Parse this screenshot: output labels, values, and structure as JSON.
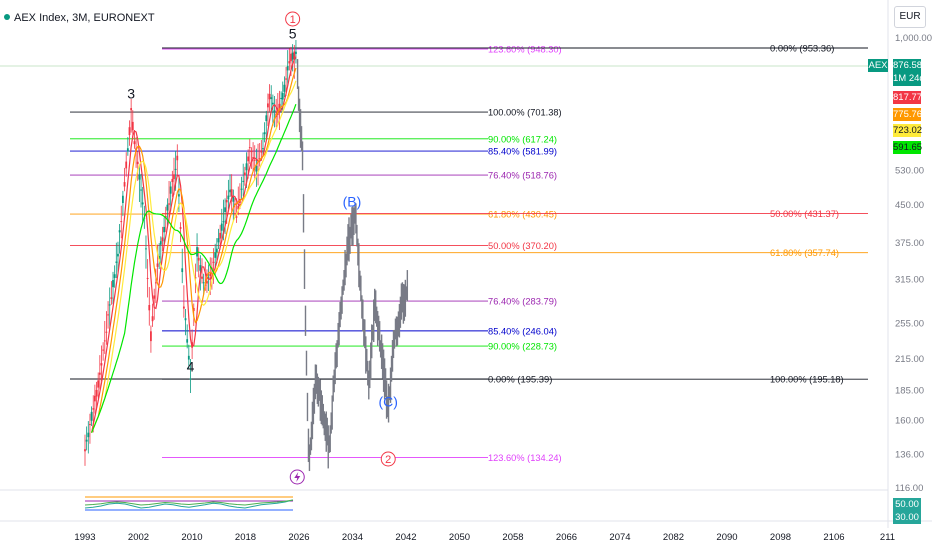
{
  "header": {
    "title": "AEX Index, 3M, EURONEXT",
    "currency": "EUR"
  },
  "price_tags": {
    "aex_label": "AEX",
    "last_price": "876.58",
    "countdown": "1M 24d",
    "tags": [
      {
        "value": "817.77",
        "bg": "#f23645",
        "fg": "#ffffff"
      },
      {
        "value": "775.76",
        "bg": "#ff9800",
        "fg": "#ffffff"
      },
      {
        "value": "723.02",
        "bg": "#ffeb3b",
        "fg": "#131722"
      },
      {
        "value": "591.65",
        "bg": "#00e600",
        "fg": "#131722"
      }
    ],
    "osc_tags": [
      {
        "value": "50.00",
        "bg": "#26a69a",
        "fg": "#ffffff"
      },
      {
        "value": "30.00",
        "bg": "#26a69a",
        "fg": "#ffffff"
      }
    ]
  },
  "chart_data": {
    "type": "line",
    "title": "AEX Index, 3M, EURONEXT",
    "price_scale": "log",
    "x_ticks": [
      "1993",
      "2002",
      "2010",
      "2018",
      "2026",
      "2034",
      "2042",
      "2050",
      "2058",
      "2066",
      "2074",
      "2082",
      "2090",
      "2098",
      "2106",
      "211"
    ],
    "y_ticks": [
      "1,000.00",
      "530.00",
      "450.00",
      "375.00",
      "315.00",
      "255.00",
      "215.00",
      "185.00",
      "160.00",
      "136.00",
      "116.00"
    ],
    "series": [
      {
        "values_approx": [
          [
            1993,
            140
          ],
          [
            1995,
            190
          ],
          [
            1998,
            360
          ],
          [
            2000,
            700
          ],
          [
            2002,
            420
          ],
          [
            2003,
            240
          ],
          [
            2004,
            340
          ],
          [
            2006,
            480
          ],
          [
            2007,
            560
          ],
          [
            2008,
            280
          ],
          [
            2009,
            200
          ],
          [
            2010,
            360
          ],
          [
            2011,
            310
          ],
          [
            2012,
            320
          ],
          [
            2014,
            420
          ],
          [
            2015,
            490
          ],
          [
            2016,
            430
          ],
          [
            2018,
            580
          ],
          [
            2019,
            540
          ],
          [
            2020,
            600
          ],
          [
            2021,
            760
          ],
          [
            2022,
            680
          ],
          [
            2023,
            760
          ],
          [
            2024,
            900
          ],
          [
            2025,
            930
          ],
          [
            2026,
            560
          ],
          [
            2026.5,
            230
          ],
          [
            2027,
            130
          ],
          [
            2028,
            200
          ],
          [
            2029,
            170
          ],
          [
            2030,
            140
          ],
          [
            2031,
            210
          ],
          [
            2032,
            290
          ],
          [
            2033,
            380
          ],
          [
            2034,
            430
          ],
          [
            2035,
            280
          ],
          [
            2036,
            190
          ],
          [
            2037,
            280
          ],
          [
            2038,
            220
          ],
          [
            2039,
            170
          ],
          [
            2040,
            240
          ],
          [
            2041,
            280
          ],
          [
            2042,
            300
          ]
        ]
      }
    ],
    "fib_levels": [
      {
        "label": "123.60% (948.30)",
        "y": 948.3,
        "x1": 2003,
        "color": "#e040fb"
      },
      {
        "label": "0.00% (953.36)",
        "y": 953.36,
        "x2": 2058,
        "color": "#131722"
      },
      {
        "label": "100.00% (701.38)",
        "y": 701.38,
        "x1": 1993,
        "color": "#131722"
      },
      {
        "label": "90.00% (617.24)",
        "y": 617.24,
        "x1": 1993,
        "color": "#00e600"
      },
      {
        "label": "85.40% (581.99)",
        "y": 581.99,
        "x1": 1993,
        "color": "#0000cc"
      },
      {
        "label": "76.40% (518.76)",
        "y": 518.76,
        "x1": 1993,
        "color": "#9c27b0"
      },
      {
        "label": "61.80% (430.45)",
        "y": 430.45,
        "x1": 1993,
        "color": "#ff9800"
      },
      {
        "label": "50.00% (431.37)",
        "y": 431.37,
        "x2": 2058,
        "color": "#f23645"
      },
      {
        "label": "50.00% (370.20)",
        "y": 370.2,
        "x1": 1993,
        "color": "#f23645"
      },
      {
        "label": "61.80% (357.74)",
        "y": 357.74,
        "x2": 2058,
        "color": "#ff9800"
      },
      {
        "label": "76.40% (283.79)",
        "y": 283.79,
        "x1": 2003,
        "color": "#9c27b0"
      },
      {
        "label": "85.40% (246.04)",
        "y": 246.04,
        "x1": 2003,
        "color": "#0000cc"
      },
      {
        "label": "90.00% (228.73)",
        "y": 228.73,
        "x1": 2003,
        "color": "#00e600"
      },
      {
        "label": "0.00% (195.39)",
        "y": 195.39,
        "x1": 1993,
        "color": "#131722"
      },
      {
        "label": "100.00% (195.18)",
        "y": 195.18,
        "x2": 2058,
        "color": "#131722"
      },
      {
        "label": "123.60% (134.24)",
        "y": 134.24,
        "x1": 2003,
        "color": "#e040fb"
      }
    ],
    "wave_labels": [
      {
        "text": "3",
        "x": 2000,
        "y": 720,
        "color": "#131722"
      },
      {
        "text": "4",
        "x": 2009,
        "y": 195,
        "color": "#131722"
      },
      {
        "text": "5",
        "x": 2024.5,
        "y": 960,
        "color": "#131722"
      },
      {
        "text": "(B)",
        "x": 2033.5,
        "y": 430,
        "color": "#2962ff"
      },
      {
        "text": "(C)",
        "x": 2039,
        "y": 165,
        "color": "#2962ff"
      }
    ],
    "circle_labels": [
      {
        "text": "1",
        "x": 2024.5,
        "y": 960,
        "color": "#f23645"
      },
      {
        "text": "2",
        "x": 2039,
        "y": 150,
        "color": "#f23645"
      }
    ],
    "oscillator": {
      "values_approx": [
        0.5,
        0.52,
        0.55,
        0.6,
        0.62,
        0.6,
        0.55,
        0.5,
        0.52,
        0.56,
        0.6,
        0.58,
        0.54,
        0.52,
        0.55,
        0.58,
        0.62,
        0.6,
        0.55,
        0.52,
        0.5,
        0.54,
        0.58,
        0.6,
        0.62,
        0.65,
        0.7
      ]
    }
  }
}
